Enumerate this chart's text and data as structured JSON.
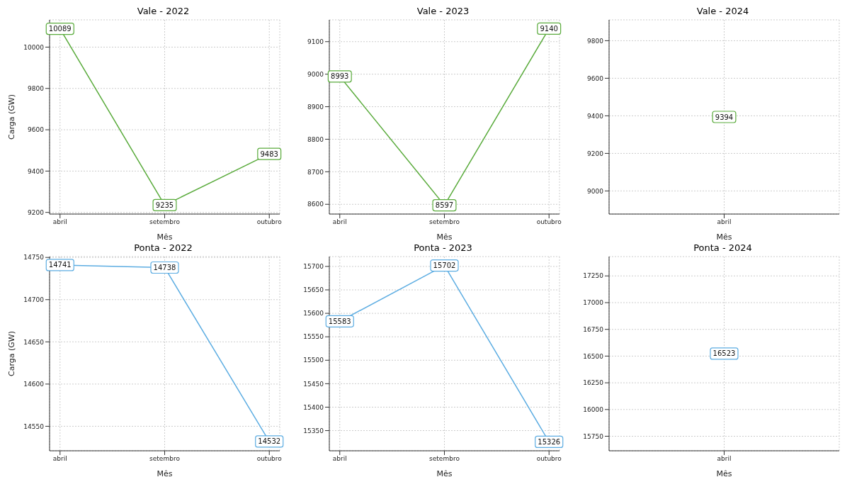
{
  "chart_data": [
    {
      "type": "line",
      "title": "Vale - 2022",
      "xlabel": "Mês",
      "ylabel": "Carga (GW)",
      "categories": [
        "abril",
        "setembro",
        "outubro"
      ],
      "series": [
        {
          "color": "#5aab3c",
          "values": [
            10089,
            9235,
            9483
          ]
        }
      ],
      "ylim": [
        9192,
        10132
      ],
      "yticks": [
        9200,
        9400,
        9600,
        9800,
        10000
      ],
      "grid": true,
      "marker": "square",
      "line_style": "solid",
      "data_labels": true
    },
    {
      "type": "line",
      "title": "Vale - 2023",
      "xlabel": "Mês",
      "categories": [
        "abril",
        "setembro",
        "outubro"
      ],
      "series": [
        {
          "color": "#5aab3c",
          "values": [
            8993,
            8597,
            9140
          ]
        }
      ],
      "ylim": [
        8570,
        9167
      ],
      "yticks": [
        8600,
        8700,
        8800,
        8900,
        9000,
        9100
      ],
      "grid": true,
      "marker": "square",
      "line_style": "solid",
      "data_labels": true
    },
    {
      "type": "line",
      "title": "Vale - 2024",
      "xlabel": "Mês",
      "categories": [
        "abril"
      ],
      "series": [
        {
          "color": "#5aab3c",
          "values": [
            9394
          ]
        }
      ],
      "ylim": [
        8877,
        9911
      ],
      "yticks": [
        9000,
        9200,
        9400,
        9600,
        9800
      ],
      "grid": true,
      "marker": "square",
      "line_style": "solid",
      "data_labels": true
    },
    {
      "type": "line",
      "title": "Ponta - 2022",
      "xlabel": "Mês",
      "ylabel": "Carga (GW)",
      "categories": [
        "abril",
        "setembro",
        "outubro"
      ],
      "series": [
        {
          "color": "#5dade2",
          "values": [
            14741,
            14738,
            14532
          ]
        }
      ],
      "ylim": [
        14521,
        14751
      ],
      "yticks": [
        14550,
        14600,
        14650,
        14700,
        14750
      ],
      "grid": true,
      "marker": "square",
      "line_style": "solid",
      "data_labels": true
    },
    {
      "type": "line",
      "title": "Ponta - 2023",
      "xlabel": "Mês",
      "categories": [
        "abril",
        "setembro",
        "outubro"
      ],
      "series": [
        {
          "color": "#5dade2",
          "values": [
            15583,
            15702,
            15326
          ]
        }
      ],
      "ylim": [
        15307,
        15721
      ],
      "yticks": [
        15350,
        15400,
        15450,
        15500,
        15550,
        15600,
        15650,
        15700
      ],
      "grid": true,
      "marker": "square",
      "line_style": "solid",
      "data_labels": true
    },
    {
      "type": "line",
      "title": "Ponta - 2024",
      "xlabel": "Mês",
      "categories": [
        "abril"
      ],
      "series": [
        {
          "color": "#5dade2",
          "values": [
            16523
          ]
        }
      ],
      "ylim": [
        15614,
        17431
      ],
      "yticks": [
        15750,
        16000,
        16250,
        16500,
        16750,
        17000,
        17250
      ],
      "grid": true,
      "marker": "square",
      "line_style": "solid",
      "data_labels": true
    }
  ]
}
